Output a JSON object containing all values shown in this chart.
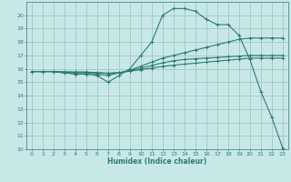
{
  "xlabel": "Humidex (Indice chaleur)",
  "xlim": [
    -0.5,
    23.5
  ],
  "ylim": [
    10,
    21
  ],
  "yticks": [
    10,
    11,
    12,
    13,
    14,
    15,
    16,
    17,
    18,
    19,
    20
  ],
  "xticks": [
    0,
    1,
    2,
    3,
    4,
    5,
    6,
    7,
    8,
    9,
    10,
    11,
    12,
    13,
    14,
    15,
    16,
    17,
    18,
    19,
    20,
    21,
    22,
    23
  ],
  "bg_color": "#c8e8e8",
  "grid_color": "#9bbfbf",
  "line_color": "#2d7a70",
  "lines": [
    {
      "x": [
        0,
        1,
        2,
        3,
        4,
        5,
        6,
        7,
        8,
        9,
        10,
        11,
        12,
        13,
        14,
        15,
        16,
        17,
        18,
        19,
        20,
        21,
        22,
        23
      ],
      "y": [
        15.8,
        15.8,
        15.8,
        15.7,
        15.6,
        15.6,
        15.5,
        15.0,
        15.5,
        16.0,
        17.0,
        18.0,
        20.0,
        20.5,
        20.5,
        20.3,
        19.7,
        19.3,
        19.3,
        18.5,
        16.7,
        14.3,
        12.4,
        10.1
      ]
    },
    {
      "x": [
        0,
        1,
        2,
        3,
        4,
        5,
        6,
        7,
        8,
        9,
        10,
        11,
        12,
        13,
        14,
        15,
        16,
        17,
        18,
        19,
        20,
        21,
        22,
        23
      ],
      "y": [
        15.8,
        15.8,
        15.8,
        15.7,
        15.7,
        15.7,
        15.6,
        15.5,
        15.7,
        15.9,
        16.2,
        16.5,
        16.8,
        17.0,
        17.2,
        17.4,
        17.6,
        17.8,
        18.0,
        18.2,
        18.3,
        18.3,
        18.3,
        18.3
      ]
    },
    {
      "x": [
        0,
        1,
        2,
        3,
        4,
        5,
        6,
        7,
        8,
        9,
        10,
        11,
        12,
        13,
        14,
        15,
        16,
        17,
        18,
        19,
        20,
        21,
        22,
        23
      ],
      "y": [
        15.8,
        15.8,
        15.8,
        15.75,
        15.75,
        15.75,
        15.7,
        15.65,
        15.7,
        15.85,
        16.05,
        16.25,
        16.45,
        16.6,
        16.7,
        16.75,
        16.8,
        16.85,
        16.9,
        16.95,
        17.0,
        17.0,
        17.0,
        17.0
      ]
    },
    {
      "x": [
        0,
        1,
        2,
        3,
        4,
        5,
        6,
        7,
        8,
        9,
        10,
        11,
        12,
        13,
        14,
        15,
        16,
        17,
        18,
        19,
        20,
        21,
        22,
        23
      ],
      "y": [
        15.8,
        15.8,
        15.8,
        15.78,
        15.76,
        15.76,
        15.72,
        15.68,
        15.72,
        15.82,
        15.94,
        16.06,
        16.18,
        16.27,
        16.35,
        16.42,
        16.5,
        16.57,
        16.65,
        16.72,
        16.8,
        16.8,
        16.8,
        16.8
      ]
    }
  ]
}
